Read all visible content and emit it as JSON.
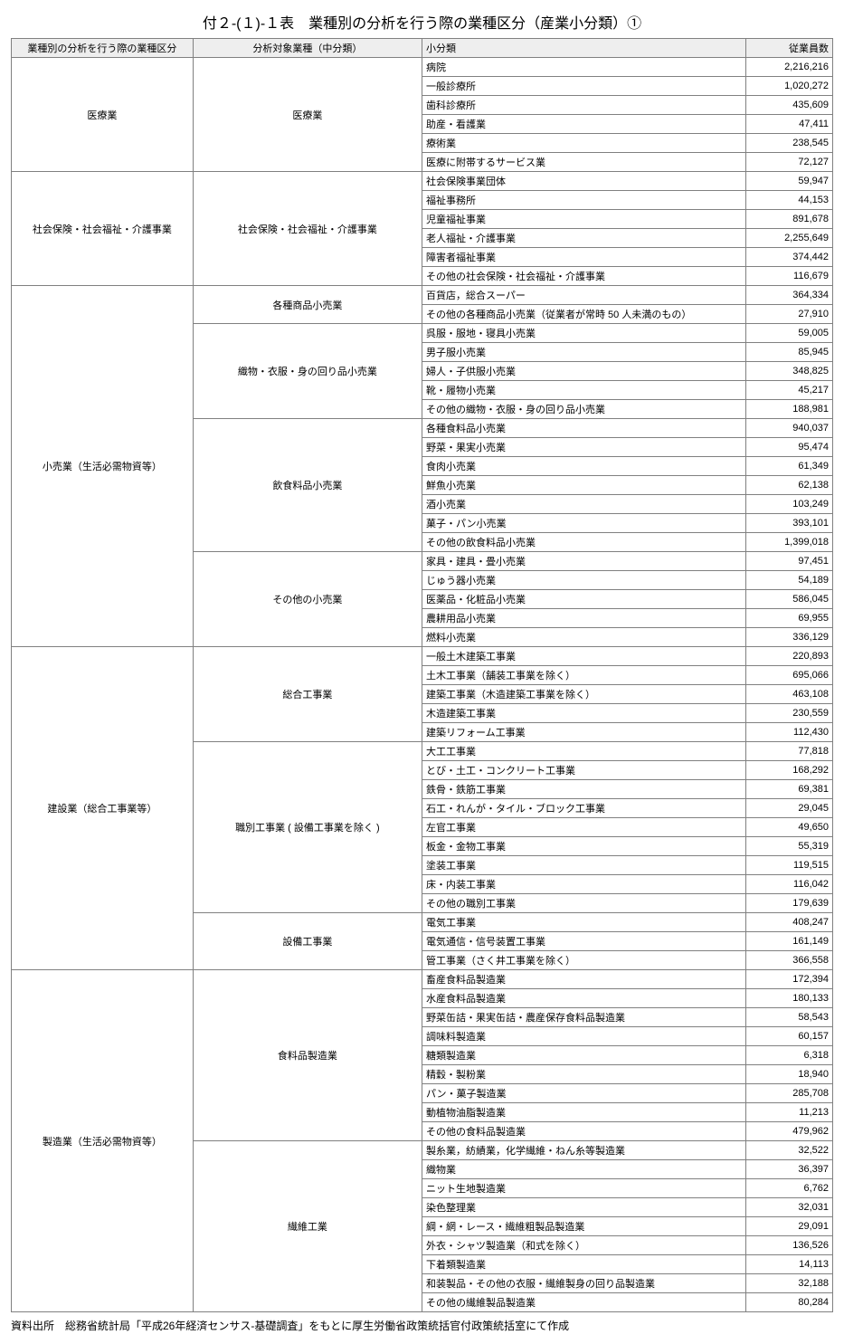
{
  "title": "付２-(１)-１表　業種別の分析を行う際の業種区分（産業小分類）①",
  "headers": [
    "業種別の分析を行う際の業種区分",
    "分析対象業種（中分類）",
    "小分類",
    "従業員数"
  ],
  "footer": "資料出所　総務省統計局「平成26年経済センサス-基礎調査」をもとに厚生労働省政策統括官付政策統括室にて作成",
  "groups": [
    {
      "c1": "医療業",
      "mids": [
        {
          "c2": "医療業",
          "rows": [
            {
              "c3": "病院",
              "c4": "2,216,216"
            },
            {
              "c3": "一般診療所",
              "c4": "1,020,272"
            },
            {
              "c3": "歯科診療所",
              "c4": "435,609"
            },
            {
              "c3": "助産・看護業",
              "c4": "47,411"
            },
            {
              "c3": "療術業",
              "c4": "238,545"
            },
            {
              "c3": "医療に附帯するサービス業",
              "c4": "72,127"
            }
          ]
        }
      ]
    },
    {
      "c1": "社会保険・社会福祉・介護事業",
      "mids": [
        {
          "c2": "社会保険・社会福祉・介護事業",
          "rows": [
            {
              "c3": "社会保険事業団体",
              "c4": "59,947"
            },
            {
              "c3": "福祉事務所",
              "c4": "44,153"
            },
            {
              "c3": "児童福祉事業",
              "c4": "891,678"
            },
            {
              "c3": "老人福祉・介護事業",
              "c4": "2,255,649"
            },
            {
              "c3": "障害者福祉事業",
              "c4": "374,442"
            },
            {
              "c3": "その他の社会保険・社会福祉・介護事業",
              "c4": "116,679"
            }
          ]
        }
      ]
    },
    {
      "c1": "小売業（生活必需物資等）",
      "mids": [
        {
          "c2": "各種商品小売業",
          "rows": [
            {
              "c3": "百貨店，総合スーパー",
              "c4": "364,334"
            },
            {
              "c3": "その他の各種商品小売業（従業者が常時 50 人未満のもの）",
              "c4": "27,910"
            }
          ]
        },
        {
          "c2": "織物・衣服・身の回り品小売業",
          "rows": [
            {
              "c3": "呉服・服地・寝具小売業",
              "c4": "59,005"
            },
            {
              "c3": "男子服小売業",
              "c4": "85,945"
            },
            {
              "c3": "婦人・子供服小売業",
              "c4": "348,825"
            },
            {
              "c3": "靴・履物小売業",
              "c4": "45,217"
            },
            {
              "c3": "その他の織物・衣服・身の回り品小売業",
              "c4": "188,981"
            }
          ]
        },
        {
          "c2": "飲食料品小売業",
          "rows": [
            {
              "c3": "各種食料品小売業",
              "c4": "940,037"
            },
            {
              "c3": "野菜・果実小売業",
              "c4": "95,474"
            },
            {
              "c3": "食肉小売業",
              "c4": "61,349"
            },
            {
              "c3": "鮮魚小売業",
              "c4": "62,138"
            },
            {
              "c3": "酒小売業",
              "c4": "103,249"
            },
            {
              "c3": "菓子・パン小売業",
              "c4": "393,101"
            },
            {
              "c3": "その他の飲食料品小売業",
              "c4": "1,399,018"
            }
          ]
        },
        {
          "c2": "その他の小売業",
          "rows": [
            {
              "c3": "家具・建具・畳小売業",
              "c4": "97,451"
            },
            {
              "c3": "じゅう器小売業",
              "c4": "54,189"
            },
            {
              "c3": "医薬品・化粧品小売業",
              "c4": "586,045"
            },
            {
              "c3": "農耕用品小売業",
              "c4": "69,955"
            },
            {
              "c3": "燃料小売業",
              "c4": "336,129"
            }
          ]
        }
      ]
    },
    {
      "c1": "建設業（総合工事業等）",
      "mids": [
        {
          "c2": "総合工事業",
          "rows": [
            {
              "c3": "一般土木建築工事業",
              "c4": "220,893"
            },
            {
              "c3": "土木工事業（舗装工事業を除く）",
              "c4": "695,066"
            },
            {
              "c3": "建築工事業（木造建築工事業を除く）",
              "c4": "463,108"
            },
            {
              "c3": "木造建築工事業",
              "c4": "230,559"
            },
            {
              "c3": "建築リフォーム工事業",
              "c4": "112,430"
            }
          ]
        },
        {
          "c2": "職別工事業 ( 設備工事業を除く )",
          "rows": [
            {
              "c3": "大工工事業",
              "c4": "77,818"
            },
            {
              "c3": "とび・土工・コンクリート工事業",
              "c4": "168,292"
            },
            {
              "c3": "鉄骨・鉄筋工事業",
              "c4": "69,381"
            },
            {
              "c3": "石工・れんが・タイル・ブロック工事業",
              "c4": "29,045"
            },
            {
              "c3": "左官工事業",
              "c4": "49,650"
            },
            {
              "c3": "板金・金物工事業",
              "c4": "55,319"
            },
            {
              "c3": "塗装工事業",
              "c4": "119,515"
            },
            {
              "c3": "床・内装工事業",
              "c4": "116,042"
            },
            {
              "c3": "その他の職別工事業",
              "c4": "179,639"
            }
          ]
        },
        {
          "c2": "設備工事業",
          "rows": [
            {
              "c3": "電気工事業",
              "c4": "408,247"
            },
            {
              "c3": "電気通信・信号装置工事業",
              "c4": "161,149"
            },
            {
              "c3": "管工事業（さく井工事業を除く）",
              "c4": "366,558"
            }
          ]
        }
      ]
    },
    {
      "c1": "製造業（生活必需物資等）",
      "mids": [
        {
          "c2": "食料品製造業",
          "rows": [
            {
              "c3": "畜産食料品製造業",
              "c4": "172,394"
            },
            {
              "c3": "水産食料品製造業",
              "c4": "180,133"
            },
            {
              "c3": "野菜缶詰・果実缶詰・農産保存食料品製造業",
              "c4": "58,543"
            },
            {
              "c3": "調味料製造業",
              "c4": "60,157"
            },
            {
              "c3": "糖類製造業",
              "c4": "6,318"
            },
            {
              "c3": "精穀・製粉業",
              "c4": "18,940"
            },
            {
              "c3": "パン・菓子製造業",
              "c4": "285,708"
            },
            {
              "c3": "動植物油脂製造業",
              "c4": "11,213"
            },
            {
              "c3": "その他の食料品製造業",
              "c4": "479,962"
            }
          ]
        },
        {
          "c2": "繊維工業",
          "rows": [
            {
              "c3": "製糸業，紡績業，化学繊維・ねん糸等製造業",
              "c4": "32,522"
            },
            {
              "c3": "織物業",
              "c4": "36,397"
            },
            {
              "c3": "ニット生地製造業",
              "c4": "6,762"
            },
            {
              "c3": "染色整理業",
              "c4": "32,031"
            },
            {
              "c3": "綱・網・レース・繊維粗製品製造業",
              "c4": "29,091"
            },
            {
              "c3": "外衣・シャツ製造業（和式を除く）",
              "c4": "136,526"
            },
            {
              "c3": "下着類製造業",
              "c4": "14,113"
            },
            {
              "c3": "和装製品・その他の衣服・繊維製身の回り品製造業",
              "c4": "32,188"
            },
            {
              "c3": "その他の繊維製品製造業",
              "c4": "80,284"
            }
          ]
        }
      ]
    }
  ]
}
